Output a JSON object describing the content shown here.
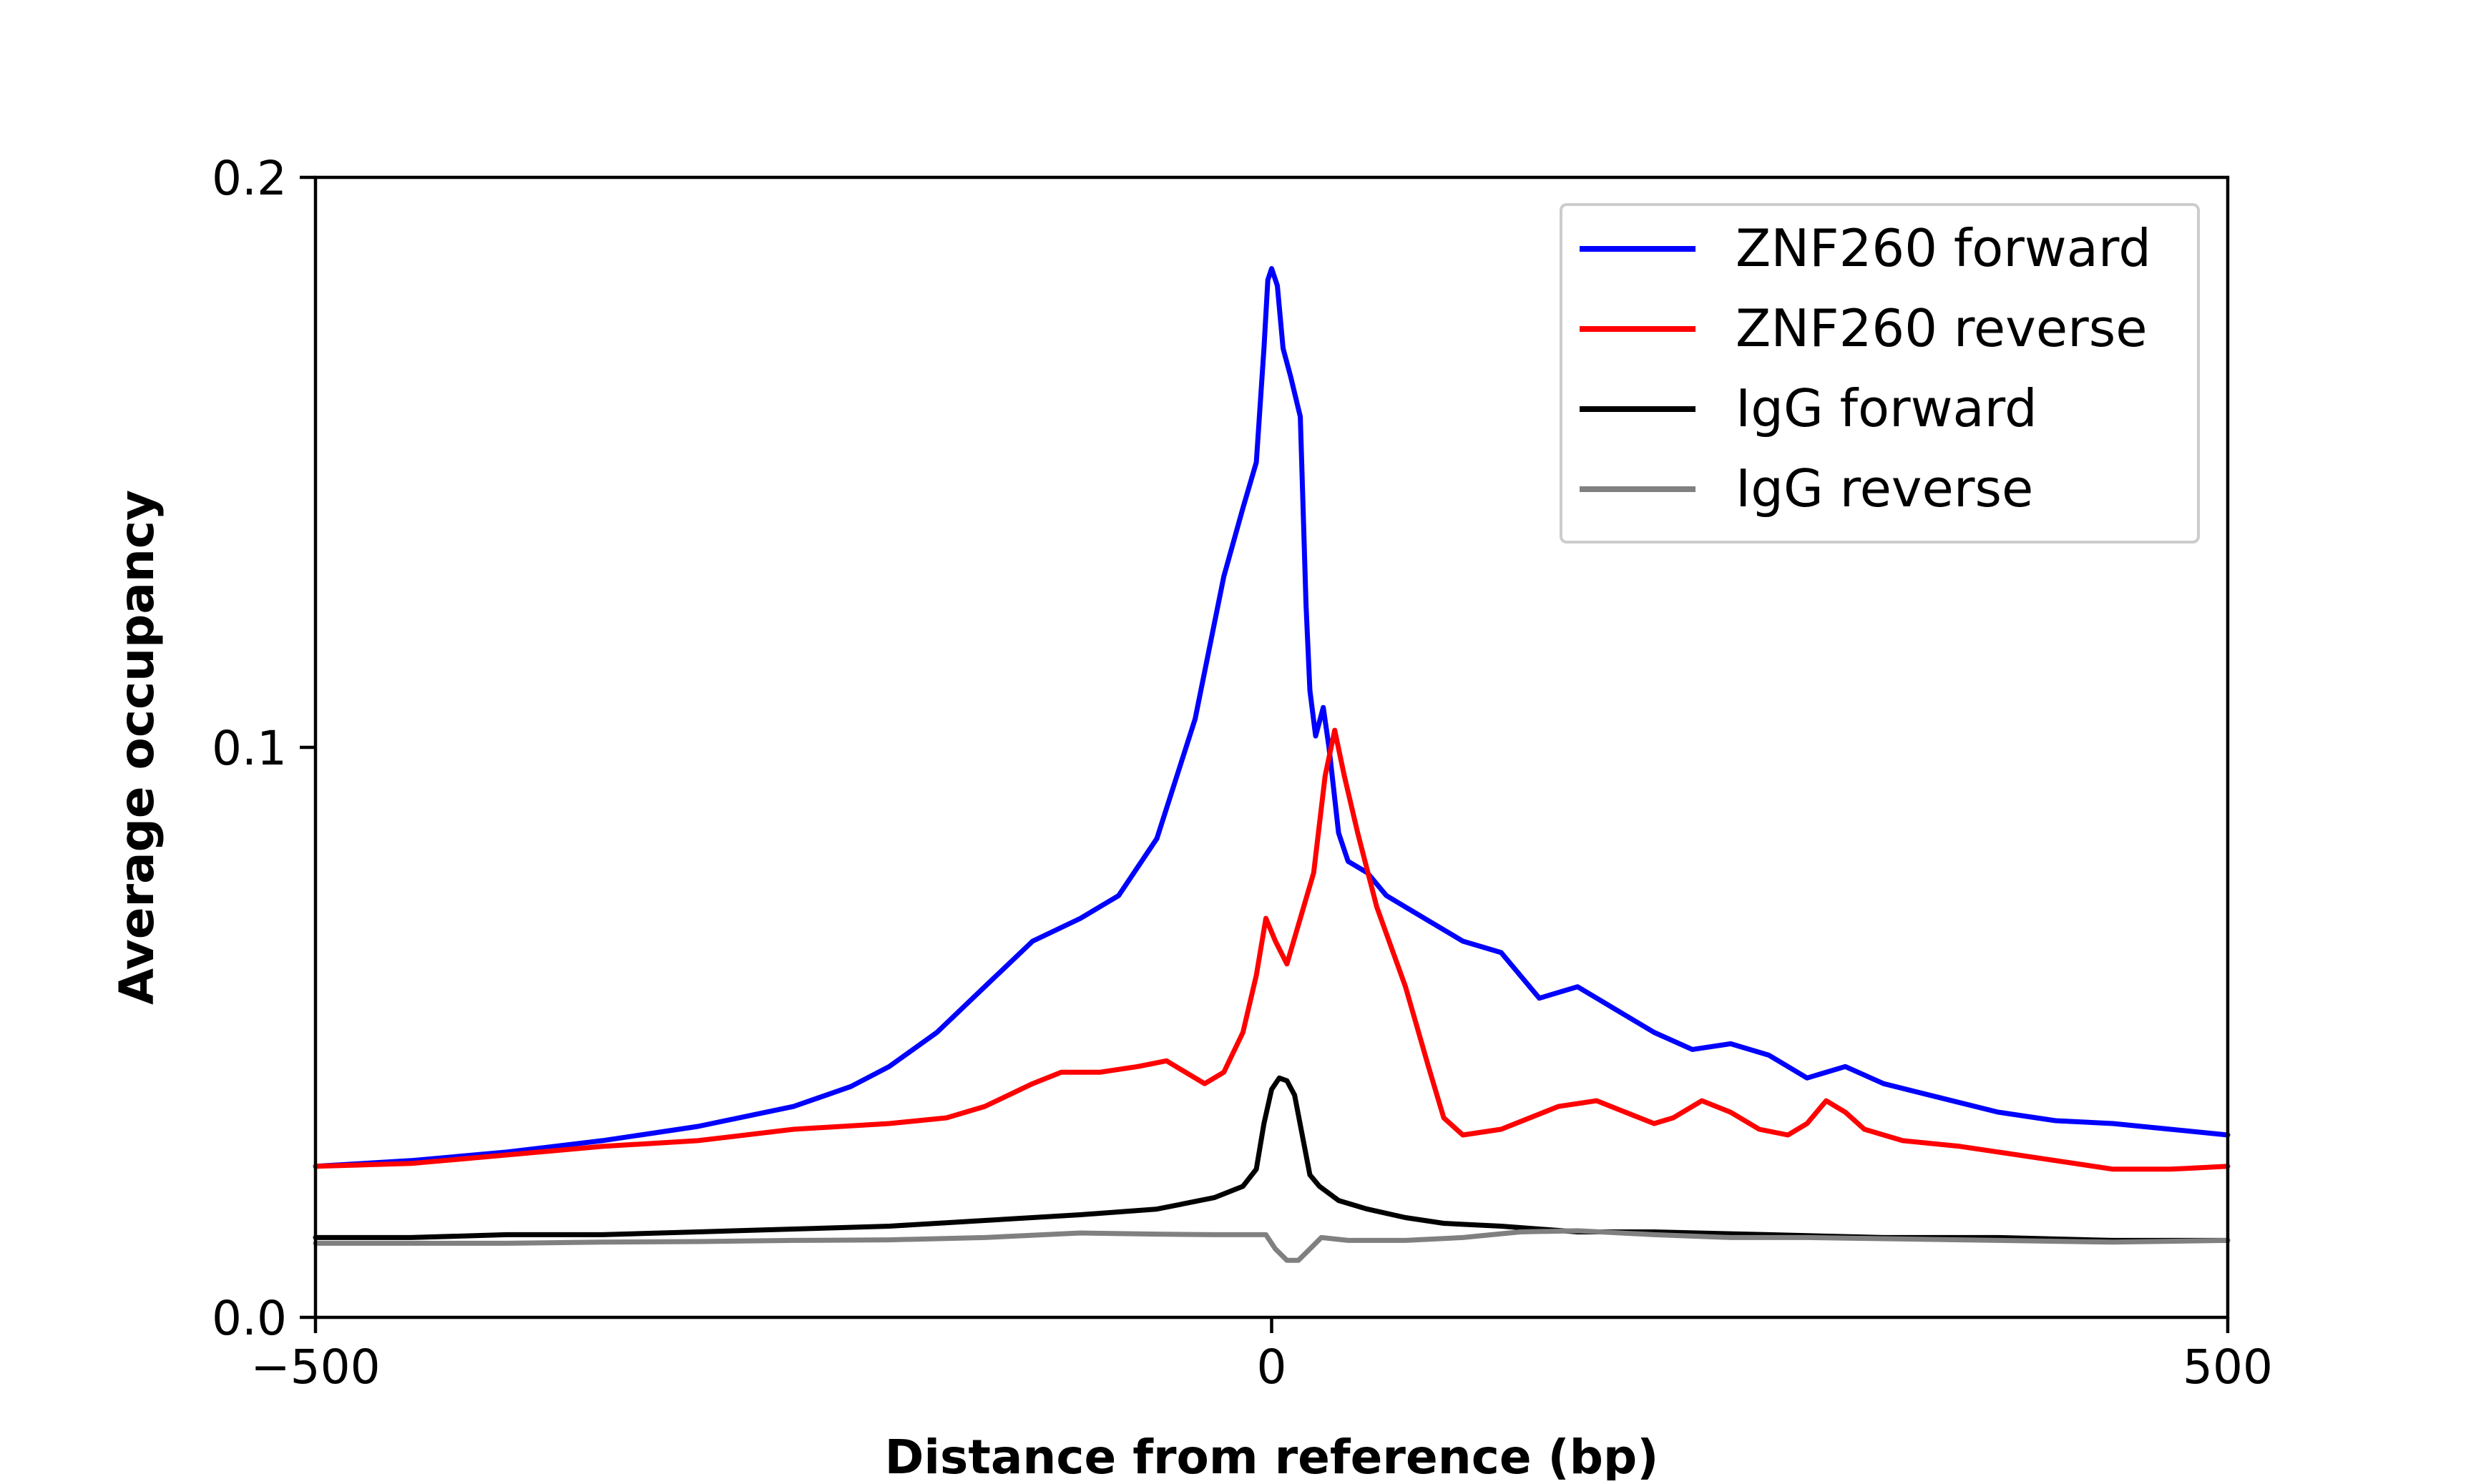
{
  "chart_data": {
    "type": "line",
    "xlabel": "Distance from reference (bp)",
    "ylabel": "Average occupancy",
    "xlim": [
      -500,
      500
    ],
    "ylim": [
      0,
      0.2
    ],
    "x_ticks": [
      -500,
      0,
      500
    ],
    "x_tick_labels": [
      "−500",
      "0",
      "500"
    ],
    "y_ticks": [
      0,
      0.1,
      0.2
    ],
    "y_tick_labels": [
      "0.0",
      "0.1",
      "0.2"
    ],
    "grid": false,
    "legend_position": "top-right",
    "series": [
      {
        "name": "ZNF260 forward",
        "color": "#0000ff",
        "points": [
          [
            -500,
            0.0265
          ],
          [
            -450,
            0.0275
          ],
          [
            -400,
            0.029
          ],
          [
            -350,
            0.031
          ],
          [
            -300,
            0.0335
          ],
          [
            -250,
            0.037
          ],
          [
            -220,
            0.0405
          ],
          [
            -200,
            0.044
          ],
          [
            -175,
            0.05
          ],
          [
            -150,
            0.058
          ],
          [
            -125,
            0.066
          ],
          [
            -100,
            0.07
          ],
          [
            -80,
            0.074
          ],
          [
            -60,
            0.084
          ],
          [
            -40,
            0.105
          ],
          [
            -25,
            0.13
          ],
          [
            -15,
            0.142
          ],
          [
            -8,
            0.15
          ],
          [
            -4,
            0.17
          ],
          [
            -2,
            0.182
          ],
          [
            0,
            0.184
          ],
          [
            3,
            0.181
          ],
          [
            6,
            0.17
          ],
          [
            10,
            0.165
          ],
          [
            15,
            0.158
          ],
          [
            18,
            0.125
          ],
          [
            20,
            0.11
          ],
          [
            23,
            0.102
          ],
          [
            27,
            0.107
          ],
          [
            30,
            0.1
          ],
          [
            35,
            0.085
          ],
          [
            40,
            0.08
          ],
          [
            50,
            0.078
          ],
          [
            60,
            0.074
          ],
          [
            70,
            0.072
          ],
          [
            85,
            0.069
          ],
          [
            100,
            0.066
          ],
          [
            120,
            0.064
          ],
          [
            140,
            0.056
          ],
          [
            160,
            0.058
          ],
          [
            180,
            0.054
          ],
          [
            200,
            0.05
          ],
          [
            220,
            0.047
          ],
          [
            240,
            0.048
          ],
          [
            260,
            0.046
          ],
          [
            280,
            0.042
          ],
          [
            300,
            0.044
          ],
          [
            320,
            0.041
          ],
          [
            350,
            0.0385
          ],
          [
            380,
            0.036
          ],
          [
            410,
            0.0345
          ],
          [
            440,
            0.034
          ],
          [
            470,
            0.033
          ],
          [
            500,
            0.032
          ]
        ]
      },
      {
        "name": "ZNF260 reverse",
        "color": "#ff0000",
        "points": [
          [
            -500,
            0.0265
          ],
          [
            -450,
            0.027
          ],
          [
            -400,
            0.0285
          ],
          [
            -350,
            0.03
          ],
          [
            -300,
            0.031
          ],
          [
            -250,
            0.033
          ],
          [
            -200,
            0.034
          ],
          [
            -170,
            0.035
          ],
          [
            -150,
            0.037
          ],
          [
            -125,
            0.041
          ],
          [
            -110,
            0.043
          ],
          [
            -90,
            0.043
          ],
          [
            -70,
            0.044
          ],
          [
            -55,
            0.045
          ],
          [
            -45,
            0.043
          ],
          [
            -35,
            0.041
          ],
          [
            -25,
            0.043
          ],
          [
            -15,
            0.05
          ],
          [
            -8,
            0.06
          ],
          [
            -3,
            0.07
          ],
          [
            2,
            0.066
          ],
          [
            8,
            0.062
          ],
          [
            15,
            0.07
          ],
          [
            22,
            0.078
          ],
          [
            28,
            0.095
          ],
          [
            33,
            0.103
          ],
          [
            38,
            0.095
          ],
          [
            45,
            0.085
          ],
          [
            55,
            0.072
          ],
          [
            70,
            0.058
          ],
          [
            82,
            0.044
          ],
          [
            90,
            0.035
          ],
          [
            100,
            0.032
          ],
          [
            120,
            0.033
          ],
          [
            150,
            0.037
          ],
          [
            170,
            0.038
          ],
          [
            185,
            0.036
          ],
          [
            200,
            0.034
          ],
          [
            210,
            0.035
          ],
          [
            225,
            0.038
          ],
          [
            240,
            0.036
          ],
          [
            255,
            0.033
          ],
          [
            270,
            0.032
          ],
          [
            280,
            0.034
          ],
          [
            290,
            0.038
          ],
          [
            300,
            0.036
          ],
          [
            310,
            0.033
          ],
          [
            330,
            0.031
          ],
          [
            360,
            0.03
          ],
          [
            400,
            0.028
          ],
          [
            440,
            0.026
          ],
          [
            470,
            0.026
          ],
          [
            500,
            0.0265
          ]
        ]
      },
      {
        "name": "IgG forward",
        "color": "#000000",
        "points": [
          [
            -500,
            0.014
          ],
          [
            -450,
            0.014
          ],
          [
            -400,
            0.0145
          ],
          [
            -350,
            0.0145
          ],
          [
            -300,
            0.015
          ],
          [
            -250,
            0.0155
          ],
          [
            -200,
            0.016
          ],
          [
            -150,
            0.017
          ],
          [
            -100,
            0.018
          ],
          [
            -60,
            0.019
          ],
          [
            -30,
            0.021
          ],
          [
            -15,
            0.023
          ],
          [
            -8,
            0.026
          ],
          [
            -4,
            0.034
          ],
          [
            0,
            0.04
          ],
          [
            4,
            0.042
          ],
          [
            8,
            0.0415
          ],
          [
            12,
            0.039
          ],
          [
            16,
            0.032
          ],
          [
            20,
            0.025
          ],
          [
            25,
            0.023
          ],
          [
            35,
            0.0205
          ],
          [
            50,
            0.019
          ],
          [
            70,
            0.0175
          ],
          [
            90,
            0.0165
          ],
          [
            120,
            0.016
          ],
          [
            160,
            0.015
          ],
          [
            200,
            0.015
          ],
          [
            260,
            0.0145
          ],
          [
            320,
            0.014
          ],
          [
            380,
            0.014
          ],
          [
            440,
            0.0135
          ],
          [
            500,
            0.0135
          ]
        ]
      },
      {
        "name": "IgG reverse",
        "color": "#808080",
        "points": [
          [
            -500,
            0.013
          ],
          [
            -450,
            0.013
          ],
          [
            -400,
            0.013
          ],
          [
            -350,
            0.0132
          ],
          [
            -300,
            0.0133
          ],
          [
            -250,
            0.0135
          ],
          [
            -200,
            0.0136
          ],
          [
            -150,
            0.014
          ],
          [
            -100,
            0.0148
          ],
          [
            -60,
            0.0146
          ],
          [
            -30,
            0.0145
          ],
          [
            -10,
            0.0145
          ],
          [
            -3,
            0.0145
          ],
          [
            2,
            0.012
          ],
          [
            8,
            0.01
          ],
          [
            14,
            0.01
          ],
          [
            20,
            0.012
          ],
          [
            26,
            0.014
          ],
          [
            40,
            0.0135
          ],
          [
            70,
            0.0135
          ],
          [
            100,
            0.014
          ],
          [
            130,
            0.015
          ],
          [
            160,
            0.0152
          ],
          [
            200,
            0.0145
          ],
          [
            240,
            0.014
          ],
          [
            280,
            0.014
          ],
          [
            320,
            0.0138
          ],
          [
            380,
            0.0135
          ],
          [
            440,
            0.0132
          ],
          [
            500,
            0.0135
          ]
        ]
      }
    ]
  }
}
